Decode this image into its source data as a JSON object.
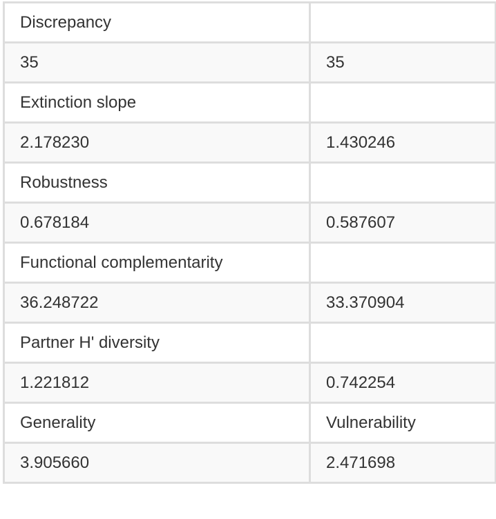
{
  "rows": [
    [
      "Discrepancy",
      ""
    ],
    [
      "35",
      "35"
    ],
    [
      "Extinction slope",
      ""
    ],
    [
      "2.178230",
      "1.430246"
    ],
    [
      "Robustness",
      ""
    ],
    [
      "0.678184",
      "0.587607"
    ],
    [
      "Functional complementarity",
      ""
    ],
    [
      "36.248722",
      "33.370904"
    ],
    [
      "Partner H' diversity",
      ""
    ],
    [
      "1.221812",
      "0.742254"
    ],
    [
      "Generality",
      "Vulnerability"
    ],
    [
      "3.905660",
      "2.471698"
    ]
  ],
  "colors": {
    "border": "#dddddd",
    "stripe": "#f9f9f9",
    "text": "#333333"
  }
}
